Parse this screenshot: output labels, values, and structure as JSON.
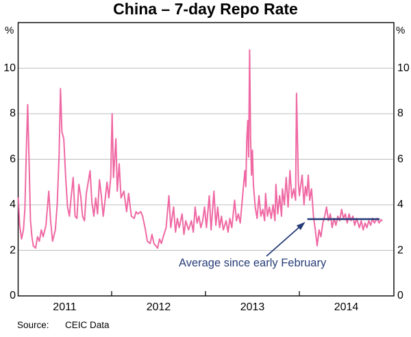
{
  "title": "China – 7-day Repo Rate",
  "percent_left": "%",
  "percent_right": "%",
  "annotation": {
    "text": "Average since early February"
  },
  "source": {
    "label": "Source:",
    "value": "CEIC Data"
  },
  "colors": {
    "line": "#ef68a3",
    "navy": "#263c77",
    "grid": "#bdbdbd",
    "frame": "#000000"
  },
  "chart_data": {
    "type": "line",
    "title": "China – 7-day Repo Rate",
    "ylabel": "%",
    "ylim": [
      0,
      12
    ],
    "y_ticks": [
      0,
      2,
      4,
      6,
      8,
      10
    ],
    "x_range": [
      2011,
      2015
    ],
    "x_tick_years": [
      2012,
      2013,
      2014
    ],
    "x_year_labels": [
      "2011",
      "2012",
      "2013",
      "2014"
    ],
    "grid": "horizontal",
    "average_line": {
      "label": "Average since early February",
      "from": 2014.085,
      "to": 2014.855,
      "value": 3.37
    },
    "series": [
      {
        "name": "7-day repo rate",
        "points": [
          [
            2011.005,
            4.3
          ],
          [
            2011.02,
            3.1
          ],
          [
            2011.04,
            2.5
          ],
          [
            2011.06,
            2.9
          ],
          [
            2011.075,
            3.8
          ],
          [
            2011.09,
            6.2
          ],
          [
            2011.105,
            8.4
          ],
          [
            2011.12,
            6.0
          ],
          [
            2011.135,
            3.3
          ],
          [
            2011.15,
            2.6
          ],
          [
            2011.165,
            2.2
          ],
          [
            2011.19,
            2.1
          ],
          [
            2011.21,
            2.6
          ],
          [
            2011.23,
            2.4
          ],
          [
            2011.25,
            2.9
          ],
          [
            2011.27,
            2.6
          ],
          [
            2011.3,
            3.1
          ],
          [
            2011.33,
            4.6
          ],
          [
            2011.35,
            3.3
          ],
          [
            2011.37,
            2.4
          ],
          [
            2011.4,
            2.9
          ],
          [
            2011.42,
            4.0
          ],
          [
            2011.44,
            6.2
          ],
          [
            2011.455,
            9.1
          ],
          [
            2011.47,
            7.2
          ],
          [
            2011.49,
            6.9
          ],
          [
            2011.51,
            5.2
          ],
          [
            2011.53,
            3.9
          ],
          [
            2011.55,
            3.5
          ],
          [
            2011.57,
            4.4
          ],
          [
            2011.59,
            5.2
          ],
          [
            2011.61,
            3.5
          ],
          [
            2011.63,
            3.4
          ],
          [
            2011.65,
            4.9
          ],
          [
            2011.67,
            4.4
          ],
          [
            2011.69,
            3.5
          ],
          [
            2011.71,
            3.3
          ],
          [
            2011.73,
            4.5
          ],
          [
            2011.75,
            5.0
          ],
          [
            2011.77,
            5.5
          ],
          [
            2011.79,
            4.1
          ],
          [
            2011.81,
            3.5
          ],
          [
            2011.83,
            4.3
          ],
          [
            2011.85,
            3.6
          ],
          [
            2011.87,
            5.1
          ],
          [
            2011.89,
            4.4
          ],
          [
            2011.91,
            3.5
          ],
          [
            2011.93,
            4.2
          ],
          [
            2011.95,
            5.0
          ],
          [
            2011.97,
            4.3
          ],
          [
            2011.99,
            5.2
          ],
          [
            2012.005,
            8.0
          ],
          [
            2012.02,
            5.2
          ],
          [
            2012.045,
            6.9
          ],
          [
            2012.06,
            4.6
          ],
          [
            2012.08,
            5.8
          ],
          [
            2012.1,
            4.3
          ],
          [
            2012.13,
            4.6
          ],
          [
            2012.16,
            3.7
          ],
          [
            2012.18,
            4.5
          ],
          [
            2012.21,
            3.5
          ],
          [
            2012.24,
            3.4
          ],
          [
            2012.26,
            3.7
          ],
          [
            2012.28,
            3.6
          ],
          [
            2012.31,
            3.7
          ],
          [
            2012.33,
            3.5
          ],
          [
            2012.36,
            2.9
          ],
          [
            2012.38,
            2.4
          ],
          [
            2012.41,
            2.3
          ],
          [
            2012.43,
            2.7
          ],
          [
            2012.45,
            2.3
          ],
          [
            2012.47,
            2.2
          ],
          [
            2012.49,
            2.1
          ],
          [
            2012.51,
            2.5
          ],
          [
            2012.53,
            2.3
          ],
          [
            2012.55,
            2.6
          ],
          [
            2012.58,
            3.0
          ],
          [
            2012.61,
            4.4
          ],
          [
            2012.63,
            3.0
          ],
          [
            2012.66,
            3.9
          ],
          [
            2012.68,
            2.8
          ],
          [
            2012.7,
            3.4
          ],
          [
            2012.72,
            3.0
          ],
          [
            2012.75,
            3.6
          ],
          [
            2012.77,
            2.7
          ],
          [
            2012.79,
            3.3
          ],
          [
            2012.82,
            2.9
          ],
          [
            2012.85,
            3.3
          ],
          [
            2012.87,
            2.8
          ],
          [
            2012.89,
            3.9
          ],
          [
            2012.91,
            3.2
          ],
          [
            2012.93,
            3.5
          ],
          [
            2012.95,
            3.0
          ],
          [
            2012.97,
            3.3
          ],
          [
            2012.99,
            3.9
          ],
          [
            2013.01,
            3.0
          ],
          [
            2013.04,
            4.4
          ],
          [
            2013.06,
            2.9
          ],
          [
            2013.09,
            4.6
          ],
          [
            2013.11,
            3.1
          ],
          [
            2013.13,
            3.9
          ],
          [
            2013.15,
            3.0
          ],
          [
            2013.17,
            3.5
          ],
          [
            2013.19,
            2.9
          ],
          [
            2013.22,
            3.3
          ],
          [
            2013.24,
            2.8
          ],
          [
            2013.26,
            3.4
          ],
          [
            2013.28,
            3.0
          ],
          [
            2013.31,
            4.2
          ],
          [
            2013.33,
            3.3
          ],
          [
            2013.35,
            3.6
          ],
          [
            2013.37,
            3.2
          ],
          [
            2013.4,
            4.6
          ],
          [
            2013.42,
            5.5
          ],
          [
            2013.43,
            4.8
          ],
          [
            2013.44,
            6.9
          ],
          [
            2013.45,
            7.7
          ],
          [
            2013.46,
            6.1
          ],
          [
            2013.47,
            10.8
          ],
          [
            2013.48,
            7.0
          ],
          [
            2013.49,
            5.3
          ],
          [
            2013.5,
            6.4
          ],
          [
            2013.51,
            4.9
          ],
          [
            2013.53,
            3.9
          ],
          [
            2013.55,
            3.4
          ],
          [
            2013.57,
            4.4
          ],
          [
            2013.59,
            3.5
          ],
          [
            2013.61,
            3.8
          ],
          [
            2013.63,
            3.3
          ],
          [
            2013.64,
            4.5
          ],
          [
            2013.66,
            3.5
          ],
          [
            2013.68,
            3.9
          ],
          [
            2013.7,
            3.4
          ],
          [
            2013.72,
            4.0
          ],
          [
            2013.74,
            3.3
          ],
          [
            2013.75,
            4.9
          ],
          [
            2013.77,
            3.6
          ],
          [
            2013.79,
            4.4
          ],
          [
            2013.81,
            3.5
          ],
          [
            2013.82,
            4.7
          ],
          [
            2013.84,
            4.0
          ],
          [
            2013.86,
            5.2
          ],
          [
            2013.88,
            3.9
          ],
          [
            2013.9,
            5.5
          ],
          [
            2013.92,
            4.3
          ],
          [
            2013.94,
            4.7
          ],
          [
            2013.96,
            4.2
          ],
          [
            2013.97,
            8.9
          ],
          [
            2013.99,
            5.0
          ],
          [
            2014.0,
            4.4
          ],
          [
            2014.03,
            5.3
          ],
          [
            2014.05,
            4.0
          ],
          [
            2014.065,
            4.8
          ],
          [
            2014.08,
            4.4
          ],
          [
            2014.095,
            5.3
          ],
          [
            2014.11,
            4.2
          ],
          [
            2014.13,
            4.7
          ],
          [
            2014.15,
            3.5
          ],
          [
            2014.17,
            2.9
          ],
          [
            2014.19,
            2.2
          ],
          [
            2014.21,
            2.9
          ],
          [
            2014.23,
            2.6
          ],
          [
            2014.25,
            3.2
          ],
          [
            2014.27,
            3.5
          ],
          [
            2014.29,
            3.9
          ],
          [
            2014.31,
            3.3
          ],
          [
            2014.33,
            3.6
          ],
          [
            2014.35,
            3.0
          ],
          [
            2014.37,
            3.4
          ],
          [
            2014.39,
            3.1
          ],
          [
            2014.41,
            3.5
          ],
          [
            2014.43,
            3.3
          ],
          [
            2014.45,
            3.8
          ],
          [
            2014.47,
            3.4
          ],
          [
            2014.49,
            3.6
          ],
          [
            2014.51,
            3.2
          ],
          [
            2014.53,
            3.6
          ],
          [
            2014.55,
            3.3
          ],
          [
            2014.57,
            3.5
          ],
          [
            2014.59,
            3.1
          ],
          [
            2014.61,
            3.4
          ],
          [
            2014.64,
            3.0
          ],
          [
            2014.66,
            3.3
          ],
          [
            2014.68,
            2.9
          ],
          [
            2014.7,
            3.2
          ],
          [
            2014.72,
            3.0
          ],
          [
            2014.74,
            3.3
          ],
          [
            2014.76,
            3.1
          ],
          [
            2014.78,
            3.4
          ],
          [
            2014.8,
            3.2
          ],
          [
            2014.83,
            3.4
          ],
          [
            2014.85,
            3.2
          ],
          [
            2014.87,
            3.35
          ],
          [
            2014.88,
            3.3
          ]
        ]
      }
    ]
  }
}
